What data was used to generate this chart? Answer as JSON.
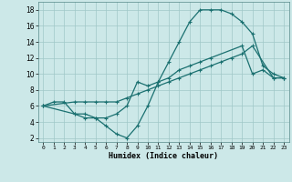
{
  "xlabel": "Humidex (Indice chaleur)",
  "background_color": "#cce8e8",
  "grid_color": "#a0c8c8",
  "line_color": "#1a7070",
  "xlim": [
    -0.5,
    23.5
  ],
  "ylim": [
    1.5,
    19
  ],
  "xticks": [
    0,
    1,
    2,
    3,
    4,
    5,
    6,
    7,
    8,
    9,
    10,
    11,
    12,
    13,
    14,
    15,
    16,
    17,
    18,
    19,
    20,
    21,
    22,
    23
  ],
  "yticks": [
    2,
    4,
    6,
    8,
    10,
    12,
    14,
    16,
    18
  ],
  "line1_x": [
    0,
    1,
    2,
    3,
    4,
    5,
    6,
    7,
    8,
    9,
    10,
    11,
    12,
    13,
    14,
    15,
    16,
    17,
    18,
    19,
    20,
    21,
    22,
    23
  ],
  "line1_y": [
    6,
    6.5,
    6.5,
    5,
    4.5,
    4.5,
    3.5,
    2.5,
    2,
    3.5,
    6,
    9,
    11.5,
    14,
    16.5,
    18,
    18,
    18,
    17.5,
    16.5,
    15,
    11,
    10,
    9.5
  ],
  "line2_x": [
    0,
    3,
    4,
    5,
    6,
    7,
    8,
    9,
    10,
    11,
    12,
    13,
    14,
    15,
    16,
    19,
    20,
    21,
    22,
    23
  ],
  "line2_y": [
    6,
    5,
    5,
    4.5,
    4.5,
    5,
    6,
    9,
    8.5,
    9,
    9.5,
    10.5,
    11,
    11.5,
    12,
    13.5,
    10,
    10.5,
    9.5,
    9.5
  ],
  "line3_x": [
    0,
    3,
    4,
    5,
    6,
    7,
    8,
    9,
    10,
    11,
    12,
    13,
    14,
    15,
    16,
    17,
    18,
    19,
    20,
    22,
    23
  ],
  "line3_y": [
    6,
    6.5,
    6.5,
    6.5,
    6.5,
    6.5,
    7,
    7.5,
    8,
    8.5,
    9,
    9.5,
    10,
    10.5,
    11,
    11.5,
    12,
    12.5,
    13.5,
    9.5,
    9.5
  ]
}
